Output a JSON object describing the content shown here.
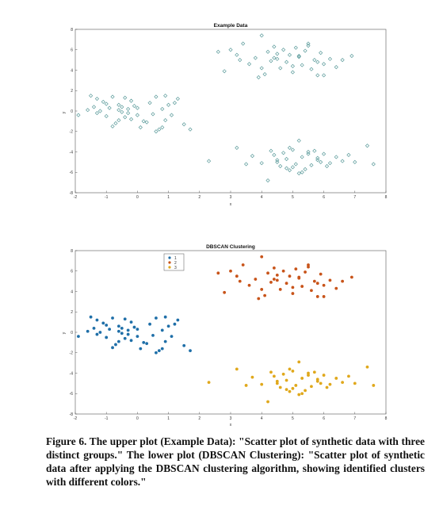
{
  "figure": {
    "caption": "Figure 6. The upper plot (Example Data): \"Scatter plot of synthetic data with three distinct groups.\" The lower plot (DBSCAN Clustering): \"Scatter plot of synthetic data after applying the DBSCAN clustering algorithm, showing identified clusters with different colors.\""
  },
  "chart_data": [
    {
      "type": "scatter",
      "title": "Example Data",
      "xlabel": "x",
      "ylabel": "y",
      "xlim": [
        -2,
        8
      ],
      "ylim": [
        -8,
        8
      ],
      "xticks": [
        -2,
        -1,
        0,
        1,
        2,
        3,
        4,
        5,
        6,
        7,
        8
      ],
      "yticks": [
        -8,
        -6,
        -4,
        -2,
        0,
        2,
        4,
        6,
        8
      ],
      "grid": false,
      "marker": "open-diamond",
      "colors": {
        "marker": "#5a9a9a"
      },
      "series": [
        {
          "x": [
            -1.9,
            -1.6,
            -1.5,
            -1.4,
            -1.3,
            -1.2,
            -1.1,
            -1.0,
            -0.9,
            -0.8,
            -0.7,
            -0.6,
            -0.5,
            -0.4,
            -0.3,
            -0.2,
            -0.1,
            -1.3,
            -1.0,
            -0.8,
            -0.6,
            -0.4,
            -0.2,
            0.0,
            0.2,
            0.4,
            0.5,
            0.6,
            0.7,
            0.8,
            0.9,
            1.0,
            1.1,
            1.3,
            1.5,
            1.7,
            -0.6,
            -0.3,
            0.1,
            0.6,
            0.9,
            -0.5,
            0.0,
            0.3,
            0.8,
            1.2
          ],
          "y": [
            -0.4,
            0.1,
            1.5,
            0.4,
            1.2,
            0.0,
            0.9,
            -0.5,
            0.3,
            1.4,
            -1.2,
            0.6,
            -0.1,
            1.3,
            0.2,
            -0.8,
            0.5,
            -0.2,
            0.7,
            -1.5,
            0.1,
            -0.6,
            1.0,
            0.3,
            -1.0,
            0.8,
            -0.3,
            1.4,
            -1.8,
            0.2,
            -0.9,
            0.6,
            -0.4,
            1.2,
            -1.3,
            -1.8,
            -0.9,
            -0.2,
            -1.6,
            -2.0,
            1.5,
            0.4,
            -0.4,
            -1.1,
            -1.6,
            0.8
          ]
        },
        {
          "x": [
            2.6,
            2.8,
            3.0,
            3.2,
            3.4,
            3.6,
            3.8,
            4.0,
            4.1,
            4.2,
            4.3,
            4.4,
            4.5,
            4.6,
            4.7,
            4.8,
            4.9,
            5.0,
            5.1,
            5.2,
            5.3,
            5.4,
            5.5,
            5.6,
            5.7,
            5.8,
            5.9,
            6.0,
            6.2,
            6.4,
            6.6,
            6.9,
            3.3,
            4.0,
            4.5,
            5.0,
            5.5,
            6.0,
            3.9,
            4.4,
            5.2,
            5.8
          ],
          "y": [
            5.8,
            3.9,
            6.0,
            5.5,
            6.6,
            4.6,
            5.2,
            7.4,
            3.6,
            5.8,
            4.9,
            6.3,
            5.1,
            4.2,
            6.0,
            4.8,
            5.5,
            3.8,
            6.2,
            5.3,
            4.5,
            5.9,
            6.4,
            4.1,
            5.0,
            3.5,
            5.7,
            4.6,
            5.1,
            4.3,
            5.0,
            5.4,
            5.0,
            4.2,
            5.6,
            4.4,
            6.6,
            3.5,
            3.3,
            5.2,
            5.4,
            4.8
          ]
        },
        {
          "x": [
            2.3,
            3.2,
            3.5,
            3.7,
            4.0,
            4.2,
            4.4,
            4.5,
            4.6,
            4.7,
            4.8,
            4.9,
            5.0,
            5.1,
            5.2,
            5.3,
            5.4,
            5.5,
            5.6,
            5.7,
            5.8,
            5.9,
            6.0,
            6.2,
            6.4,
            6.6,
            6.8,
            7.0,
            7.4,
            7.6,
            4.3,
            4.8,
            5.3,
            5.8,
            4.5,
            5.0,
            5.5,
            6.1,
            4.9,
            5.2
          ],
          "y": [
            -4.9,
            -3.6,
            -5.2,
            -4.4,
            -5.1,
            -6.8,
            -4.3,
            -5.0,
            -5.4,
            -4.1,
            -4.7,
            -5.8,
            -3.8,
            -5.2,
            -2.9,
            -4.5,
            -5.7,
            -4.0,
            -5.3,
            -3.9,
            -4.8,
            -5.0,
            -4.2,
            -5.1,
            -4.5,
            -4.9,
            -4.3,
            -5.0,
            -3.4,
            -5.2,
            -3.9,
            -5.6,
            -6.0,
            -4.6,
            -4.8,
            -5.5,
            -4.2,
            -5.4,
            -3.6,
            -6.1
          ]
        }
      ]
    },
    {
      "type": "scatter",
      "title": "DBSCAN Clustering",
      "xlabel": "x",
      "ylabel": "y",
      "xlim": [
        -2,
        8
      ],
      "ylim": [
        -8,
        8
      ],
      "xticks": [
        -2,
        -1,
        0,
        1,
        2,
        3,
        4,
        5,
        6,
        7,
        8
      ],
      "yticks": [
        -8,
        -6,
        -4,
        -2,
        0,
        2,
        4,
        6,
        8
      ],
      "grid": false,
      "marker": "filled-circle",
      "legend": {
        "placement": "top-left",
        "entries": [
          "1",
          "2",
          "3"
        ]
      },
      "series": [
        {
          "name": "1",
          "color": "#1f6fa8",
          "x": [
            -1.9,
            -1.6,
            -1.5,
            -1.4,
            -1.3,
            -1.2,
            -1.1,
            -1.0,
            -0.9,
            -0.8,
            -0.7,
            -0.6,
            -0.5,
            -0.4,
            -0.3,
            -0.2,
            -0.1,
            -1.3,
            -1.0,
            -0.8,
            -0.6,
            -0.4,
            -0.2,
            0.0,
            0.2,
            0.4,
            0.5,
            0.6,
            0.7,
            0.8,
            0.9,
            1.0,
            1.1,
            1.3,
            1.5,
            1.7,
            -0.6,
            -0.3,
            0.1,
            0.6,
            0.9,
            -0.5,
            0.0,
            0.3,
            0.8,
            1.2
          ],
          "y": [
            -0.4,
            0.1,
            1.5,
            0.4,
            1.2,
            0.0,
            0.9,
            -0.5,
            0.3,
            1.4,
            -1.2,
            0.6,
            -0.1,
            1.3,
            0.2,
            -0.8,
            0.5,
            -0.2,
            0.7,
            -1.5,
            0.1,
            -0.6,
            1.0,
            0.3,
            -1.0,
            0.8,
            -0.3,
            1.4,
            -1.8,
            0.2,
            -0.9,
            0.6,
            -0.4,
            1.2,
            -1.3,
            -1.8,
            -0.9,
            -0.2,
            -1.6,
            -2.0,
            1.5,
            0.4,
            -0.4,
            -1.1,
            -1.6,
            0.8
          ]
        },
        {
          "name": "2",
          "color": "#c8541a",
          "x": [
            2.6,
            2.8,
            3.0,
            3.2,
            3.4,
            3.6,
            3.8,
            4.0,
            4.1,
            4.2,
            4.3,
            4.4,
            4.5,
            4.6,
            4.7,
            4.8,
            4.9,
            5.0,
            5.1,
            5.2,
            5.3,
            5.4,
            5.5,
            5.6,
            5.7,
            5.8,
            5.9,
            6.0,
            6.2,
            6.4,
            6.6,
            6.9,
            3.3,
            4.0,
            4.5,
            5.0,
            5.5,
            6.0,
            3.9,
            4.4,
            5.2,
            5.8
          ],
          "y": [
            5.8,
            3.9,
            6.0,
            5.5,
            6.6,
            4.6,
            5.2,
            7.4,
            3.6,
            5.8,
            4.9,
            6.3,
            5.1,
            4.2,
            6.0,
            4.8,
            5.5,
            3.8,
            6.2,
            5.3,
            4.5,
            5.9,
            6.4,
            4.1,
            5.0,
            3.5,
            5.7,
            4.6,
            5.1,
            4.3,
            5.0,
            5.4,
            5.0,
            4.2,
            5.6,
            4.4,
            6.6,
            3.5,
            3.3,
            5.2,
            5.4,
            4.8
          ]
        },
        {
          "name": "3",
          "color": "#e0a81c",
          "x": [
            2.3,
            3.2,
            3.5,
            3.7,
            4.0,
            4.2,
            4.4,
            4.5,
            4.6,
            4.7,
            4.8,
            4.9,
            5.0,
            5.1,
            5.2,
            5.3,
            5.4,
            5.5,
            5.6,
            5.7,
            5.8,
            5.9,
            6.0,
            6.2,
            6.4,
            6.6,
            6.8,
            7.0,
            7.4,
            7.6,
            4.3,
            4.8,
            5.3,
            5.8,
            4.5,
            5.0,
            5.5,
            6.1,
            4.9,
            5.2
          ],
          "y": [
            -4.9,
            -3.6,
            -5.2,
            -4.4,
            -5.1,
            -6.8,
            -4.3,
            -5.0,
            -5.4,
            -4.1,
            -4.7,
            -5.8,
            -3.8,
            -5.2,
            -2.9,
            -4.5,
            -5.7,
            -4.0,
            -5.3,
            -3.9,
            -4.8,
            -5.0,
            -4.2,
            -5.1,
            -4.5,
            -4.9,
            -4.3,
            -5.0,
            -3.4,
            -5.2,
            -3.9,
            -5.6,
            -6.0,
            -4.6,
            -4.8,
            -5.5,
            -4.2,
            -5.4,
            -3.6,
            -6.1
          ]
        }
      ]
    }
  ]
}
